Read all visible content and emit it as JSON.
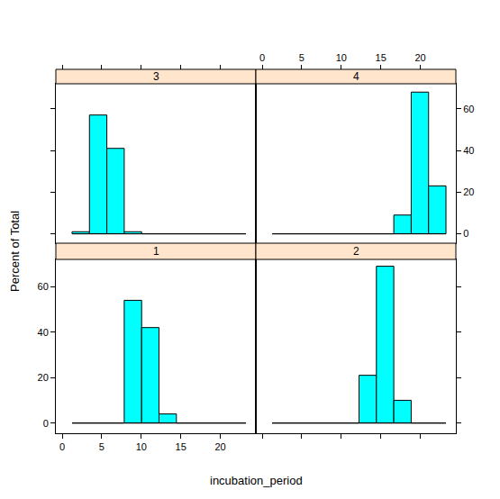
{
  "chart_data": {
    "type": "histogram",
    "x_label": "incubation_period",
    "y_label": "Percent of Total",
    "color": "#00ffff",
    "bins": [
      1.25,
      3.45,
      5.65,
      7.85,
      10.05,
      12.25,
      14.45,
      16.65,
      18.85,
      21.05,
      23.25
    ],
    "xlim": [
      -0.8,
      24.5
    ],
    "xticks": [
      0,
      5,
      10,
      15,
      20
    ],
    "ylim": [
      -4.5,
      72
    ],
    "yticks": [
      0,
      20,
      40,
      60
    ],
    "series": [
      {
        "name": "1",
        "values": [
          0,
          0,
          0,
          54,
          42,
          4,
          0,
          0,
          0,
          0
        ]
      },
      {
        "name": "2",
        "values": [
          0,
          0,
          0,
          0,
          0,
          21,
          69,
          10,
          0,
          0
        ]
      },
      {
        "name": "3",
        "values": [
          1,
          57,
          41,
          1,
          0,
          0,
          0,
          0,
          0,
          0
        ]
      },
      {
        "name": "4",
        "values": [
          0,
          0,
          0,
          0,
          0,
          0,
          0,
          9,
          68,
          23
        ]
      }
    ]
  }
}
